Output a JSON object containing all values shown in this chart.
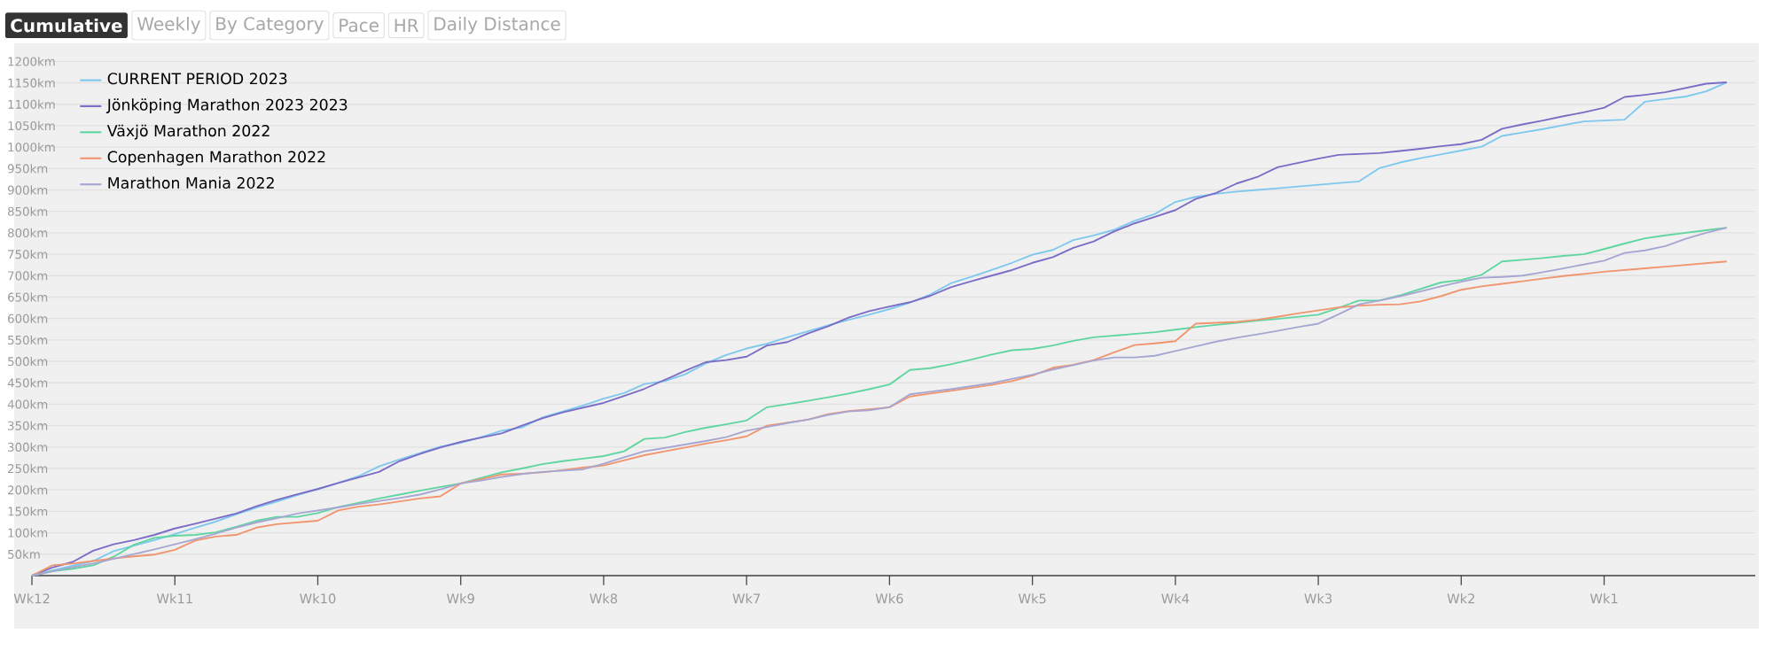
{
  "chart_data": {
    "type": "line",
    "annotations": [
      "Cumulative",
      "Weekly",
      "By Category",
      "Pace",
      "HR",
      "Daily Distance"
    ],
    "categories": [
      "Wk12",
      null,
      null,
      null,
      null,
      null,
      null,
      "Wk11",
      null,
      null,
      null,
      null,
      null,
      null,
      "Wk10",
      null,
      null,
      null,
      null,
      null,
      null,
      "Wk9",
      null,
      null,
      null,
      null,
      null,
      null,
      "Wk8",
      null,
      null,
      null,
      null,
      null,
      null,
      "Wk7",
      null,
      null,
      null,
      null,
      null,
      null,
      "Wk6",
      null,
      null,
      null,
      null,
      null,
      null,
      "Wk5",
      null,
      null,
      null,
      null,
      null,
      null,
      "Wk4",
      null,
      null,
      null,
      null,
      null,
      null,
      "Wk3",
      null,
      null,
      null,
      null,
      null,
      null,
      "Wk2",
      null,
      null,
      null,
      null,
      null,
      null,
      "Wk1",
      null,
      null,
      null,
      null,
      null,
      null
    ],
    "ylim": [
      0,
      1240
    ],
    "yticks": [
      {
        "value": 50,
        "label": "50km"
      },
      {
        "value": 100,
        "label": "100km"
      },
      {
        "value": 150,
        "label": "150km"
      },
      {
        "value": 200,
        "label": "200km"
      },
      {
        "value": 250,
        "label": "250km"
      },
      {
        "value": 300,
        "label": "300km"
      },
      {
        "value": 350,
        "label": "350km"
      },
      {
        "value": 400,
        "label": "400km"
      },
      {
        "value": 450,
        "label": "450km"
      },
      {
        "value": 500,
        "label": "500km"
      },
      {
        "value": 550,
        "label": "550km"
      },
      {
        "value": 600,
        "label": "600km"
      },
      {
        "value": 650,
        "label": "650km"
      },
      {
        "value": 700,
        "label": "700km"
      },
      {
        "value": 750,
        "label": "750km"
      },
      {
        "value": 800,
        "label": "800km"
      },
      {
        "value": 850,
        "label": "850km"
      },
      {
        "value": 900,
        "label": "900km"
      },
      {
        "value": 950,
        "label": "950km"
      },
      {
        "value": 1000,
        "label": "1000km"
      },
      {
        "value": 1050,
        "label": "1050km"
      },
      {
        "value": 1100,
        "label": "1100km"
      },
      {
        "value": 1150,
        "label": "1150km"
      },
      {
        "value": 1200,
        "label": "1200km"
      }
    ],
    "grid": "y",
    "legend": "top left",
    "series": [
      {
        "name": "CURRENT PERIOD 2023",
        "color": "#7ec8ee",
        "values": [
          0,
          12,
          23,
          34,
          57,
          70,
          83,
          97,
          112,
          126,
          143,
          159,
          173,
          188,
          202,
          216,
          232,
          255,
          271,
          286,
          301,
          310,
          323,
          338,
          346,
          369,
          383,
          397,
          413,
          426,
          447,
          454,
          470,
          495,
          515,
          530,
          541,
          556,
          570,
          584,
          597,
          609,
          622,
          637,
          656,
          682,
          697,
          713,
          730,
          749,
          760,
          783,
          794,
          807,
          828,
          844,
          872,
          884,
          891,
          896,
          900,
          904,
          908,
          912,
          916,
          920,
          951,
          964,
          974,
          983,
          992,
          1001,
          1026,
          1034,
          1042,
          1051,
          1060,
          1062,
          1064,
          1106,
          1112,
          1118,
          1130,
          1151
        ]
      },
      {
        "name": "Jönköping Marathon 2023 2023",
        "color": "#7b6cc6",
        "values": [
          0,
          19,
          32,
          58,
          73,
          83,
          95,
          110,
          121,
          133,
          145,
          162,
          177,
          190,
          202,
          216,
          229,
          242,
          267,
          284,
          299,
          312,
          322,
          332,
          350,
          367,
          381,
          392,
          403,
          419,
          436,
          457,
          478,
          498,
          503,
          511,
          537,
          545,
          565,
          582,
          602,
          617,
          628,
          638,
          653,
          673,
          687,
          700,
          713,
          730,
          743,
          765,
          780,
          803,
          822,
          837,
          853,
          879,
          893,
          915,
          930,
          953,
          963,
          973,
          982,
          984,
          986,
          991,
          996,
          1002,
          1007,
          1017,
          1043,
          1053,
          1062,
          1072,
          1081,
          1092,
          1117,
          1122,
          1128,
          1138,
          1148,
          1151
        ]
      },
      {
        "name": "Växjö Marathon 2022",
        "color": "#5fd6a0",
        "values": [
          0,
          10,
          16,
          24,
          44,
          72,
          88,
          93,
          95,
          101,
          114,
          128,
          137,
          137,
          146,
          160,
          170,
          180,
          189,
          198,
          207,
          215,
          228,
          241,
          250,
          260,
          267,
          273,
          279,
          290,
          319,
          322,
          335,
          345,
          353,
          362,
          393,
          400,
          408,
          416,
          425,
          435,
          446,
          480,
          484,
          493,
          504,
          516,
          526,
          529,
          537,
          548,
          556,
          560,
          564,
          568,
          574,
          580,
          585,
          590,
          595,
          599,
          604,
          609,
          625,
          642,
          642,
          654,
          669,
          684,
          690,
          702,
          733,
          737,
          741,
          746,
          750,
          762,
          775,
          787,
          794,
          800,
          806,
          812
        ]
      },
      {
        "name": "Copenhagen Marathon 2022",
        "color": "#f0956e",
        "values": [
          0,
          24,
          28,
          34,
          40,
          45,
          49,
          60,
          82,
          91,
          95,
          112,
          120,
          124,
          128,
          152,
          161,
          166,
          173,
          180,
          185,
          215,
          225,
          236,
          238,
          241,
          246,
          252,
          257,
          269,
          281,
          290,
          299,
          308,
          316,
          325,
          350,
          357,
          364,
          377,
          384,
          388,
          393,
          418,
          425,
          431,
          438,
          445,
          454,
          467,
          485,
          492,
          503,
          521,
          538,
          542,
          547,
          588,
          590,
          592,
          597,
          604,
          612,
          619,
          626,
          630,
          632,
          633,
          640,
          652,
          667,
          675,
          681,
          687,
          693,
          699,
          704,
          709,
          713,
          717,
          721,
          725,
          729,
          733
        ]
      },
      {
        "name": "Marathon Mania 2022",
        "color": "#a6a6d2",
        "values": [
          0,
          10,
          20,
          28,
          39,
          50,
          61,
          73,
          85,
          98,
          112,
          124,
          134,
          145,
          152,
          159,
          167,
          174,
          181,
          189,
          201,
          215,
          222,
          230,
          237,
          242,
          245,
          248,
          261,
          276,
          290,
          298,
          306,
          314,
          323,
          338,
          347,
          356,
          364,
          375,
          383,
          386,
          393,
          423,
          429,
          435,
          442,
          449,
          459,
          469,
          481,
          491,
          502,
          509,
          509,
          513,
          524,
          535,
          546,
          555,
          563,
          571,
          580,
          588,
          610,
          633,
          642,
          652,
          663,
          675,
          686,
          695,
          697,
          700,
          708,
          717,
          726,
          735,
          753,
          759,
          769,
          786,
          800,
          812
        ]
      }
    ]
  }
}
